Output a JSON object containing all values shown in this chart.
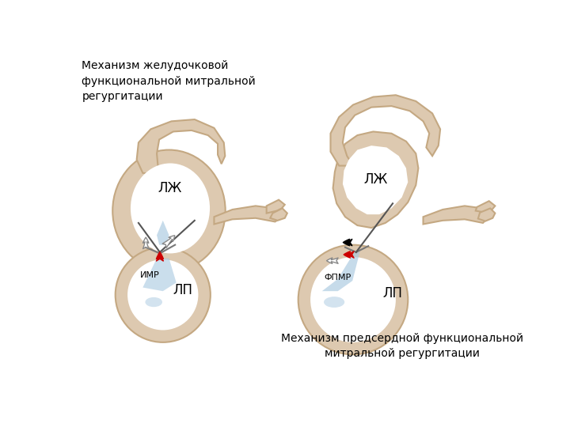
{
  "bg_color": "#ffffff",
  "heart_fill": "#ddc9b0",
  "heart_stroke": "#c4a882",
  "chamber_fill": "#ffffff",
  "blue_fill": "#a8c8e0",
  "red_color": "#cc0000",
  "title_left": "Механизм желудочковой\nфункциональной митральной\nрегургитации",
  "title_right": "Механизм предсердной функциональной\nмитральной регургитации",
  "label_lzh_left": "ЛЖ",
  "label_lp_left": "ЛП",
  "label_imr": "ИМР",
  "label_lzh_right": "ЛЖ",
  "label_lp_right": "ЛП",
  "label_fpmr": "ФПМР",
  "font_size_title": 10,
  "font_size_label": 12
}
